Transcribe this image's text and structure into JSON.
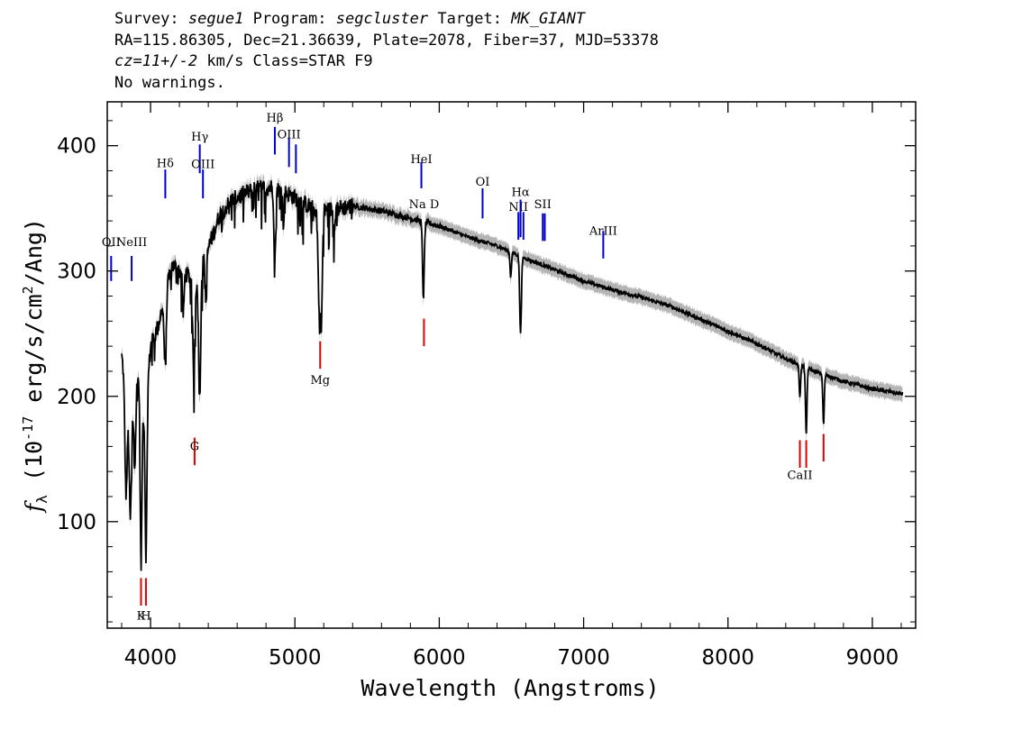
{
  "header": {
    "survey_label": "Survey:",
    "survey": "segue1",
    "program_label": "Program:",
    "program": "segcluster",
    "target_label": "Target:",
    "target": "MK_GIANT",
    "line2": "RA=115.86305, Dec=21.36639, Plate=2078, Fiber=37, MJD=53378",
    "cz": "cz=11+/-2",
    "line3_rest": " km/s Class=STAR F9",
    "line4": "No warnings."
  },
  "chart_data": {
    "type": "line",
    "xlabel": "Wavelength (Angstroms)",
    "ylabel": "f_λ (10^-17 erg/s/cm^2/Ang)",
    "xlim": [
      3700,
      9300
    ],
    "ylim": [
      15,
      435
    ],
    "xticks": [
      4000,
      5000,
      6000,
      7000,
      8000,
      9000
    ],
    "yticks": [
      100,
      200,
      300,
      400
    ],
    "colors": {
      "spectrum": "#000000",
      "error_band": "#b4b4b4",
      "emission_lines": "#0000cc",
      "absorption_lines": "#dd0000"
    },
    "continuum": [
      [
        3800,
        232
      ],
      [
        3840,
        200
      ],
      [
        3880,
        205
      ],
      [
        3920,
        215
      ],
      [
        3960,
        180
      ],
      [
        4000,
        240
      ],
      [
        4050,
        255
      ],
      [
        4100,
        280
      ],
      [
        4150,
        305
      ],
      [
        4200,
        300
      ],
      [
        4280,
        295
      ],
      [
        4360,
        305
      ],
      [
        4420,
        325
      ],
      [
        4480,
        345
      ],
      [
        4550,
        355
      ],
      [
        4650,
        362
      ],
      [
        4750,
        366
      ],
      [
        4850,
        367
      ],
      [
        4950,
        362
      ],
      [
        5050,
        355
      ],
      [
        5150,
        348
      ],
      [
        5250,
        349
      ],
      [
        5400,
        352
      ],
      [
        5600,
        348
      ],
      [
        5800,
        342
      ],
      [
        6000,
        336
      ],
      [
        6200,
        327
      ],
      [
        6400,
        320
      ],
      [
        6600,
        310
      ],
      [
        6800,
        301
      ],
      [
        7000,
        292
      ],
      [
        7200,
        285
      ],
      [
        7400,
        279
      ],
      [
        7600,
        272
      ],
      [
        7800,
        262
      ],
      [
        8000,
        252
      ],
      [
        8200,
        242
      ],
      [
        8400,
        230
      ],
      [
        8600,
        220
      ],
      [
        8800,
        212
      ],
      [
        9000,
        206
      ],
      [
        9200,
        202
      ]
    ],
    "absorption_features": [
      {
        "center": 3830,
        "depth": 85,
        "width": 8
      },
      {
        "center": 3860,
        "depth": 100,
        "width": 8
      },
      {
        "center": 3890,
        "depth": 60,
        "width": 7
      },
      {
        "center": 3934,
        "depth": 140,
        "width": 6
      },
      {
        "center": 3969,
        "depth": 120,
        "width": 6
      },
      {
        "center": 4101,
        "depth": 55,
        "width": 7
      },
      {
        "center": 4227,
        "depth": 35,
        "width": 5
      },
      {
        "center": 4300,
        "depth": 80,
        "width": 8
      },
      {
        "center": 4340,
        "depth": 105,
        "width": 7
      },
      {
        "center": 4384,
        "depth": 40,
        "width": 5
      },
      {
        "center": 4861,
        "depth": 60,
        "width": 6
      },
      {
        "center": 4920,
        "depth": 25,
        "width": 5
      },
      {
        "center": 5167,
        "depth": 70,
        "width": 7
      },
      {
        "center": 5183,
        "depth": 90,
        "width": 7
      },
      {
        "center": 5270,
        "depth": 20,
        "width": 5
      },
      {
        "center": 5890,
        "depth": 60,
        "width": 6
      },
      {
        "center": 6495,
        "depth": 20,
        "width": 5
      },
      {
        "center": 6563,
        "depth": 60,
        "width": 6
      },
      {
        "center": 8498,
        "depth": 25,
        "width": 5
      },
      {
        "center": 8542,
        "depth": 55,
        "width": 5
      },
      {
        "center": 8662,
        "depth": 40,
        "width": 5
      }
    ],
    "emission_lines": [
      {
        "label": "OII",
        "wavelength": 3727,
        "label_y": 320,
        "tick": [
          292,
          312
        ]
      },
      {
        "label": "NeIII",
        "wavelength": 3869,
        "label_y": 320,
        "tick": [
          292,
          312
        ]
      },
      {
        "label": "Hδ",
        "wavelength": 4102,
        "label_y": 383,
        "tick": [
          358,
          381
        ]
      },
      {
        "label": "Hγ",
        "wavelength": 4341,
        "label_y": 404,
        "tick": [
          378,
          401
        ]
      },
      {
        "label": "OIII",
        "wavelength": 4363,
        "label_y": 382,
        "tick": [
          358,
          381
        ]
      },
      {
        "label": "Hβ",
        "wavelength": 4861,
        "label_y": 419,
        "tick": [
          393,
          415
        ]
      },
      {
        "label": "OIII",
        "wavelength": 4959,
        "label_y": 406,
        "tick": [
          383,
          406
        ]
      },
      {
        "label": "OIII",
        "wavelength": 5007,
        "label_y": 406,
        "tick": [
          378,
          401
        ]
      },
      {
        "label": "HeI",
        "wavelength": 5876,
        "label_y": 386,
        "tick": [
          366,
          387
        ]
      },
      {
        "label": "OI",
        "wavelength": 6300,
        "label_y": 368,
        "tick": [
          342,
          366
        ]
      },
      {
        "label": "NII",
        "wavelength": 6548,
        "label_y": 348,
        "tick": [
          325,
          347
        ]
      },
      {
        "label": "Hα",
        "wavelength": 6563,
        "label_y": 360,
        "tick": [
          327,
          357
        ]
      },
      {
        "label": "NII",
        "wavelength": 6583,
        "label_y": 348,
        "tick": [
          325,
          347
        ]
      },
      {
        "label": "SII",
        "wavelength": 6717,
        "label_y": 350,
        "tick": [
          324,
          346
        ]
      },
      {
        "label": "SII",
        "wavelength": 6731,
        "label_y": 350,
        "tick": [
          324,
          346
        ]
      },
      {
        "label": "ArIII",
        "wavelength": 7136,
        "label_y": 329,
        "tick": [
          310,
          332
        ]
      }
    ],
    "absorption_lines": [
      {
        "label": "K",
        "wavelength": 3934,
        "label_y": 22,
        "tick": [
          33,
          55
        ]
      },
      {
        "label": "H",
        "wavelength": 3968,
        "label_y": 22,
        "tick": [
          33,
          55
        ]
      },
      {
        "label": "G",
        "wavelength": 4305,
        "label_y": 157,
        "tick": [
          145,
          167
        ]
      },
      {
        "label": "Mg",
        "wavelength": 5175,
        "label_y": 210,
        "tick": [
          222,
          244
        ]
      },
      {
        "label": "Na D",
        "wavelength": 5894,
        "label_y": 350,
        "tick": [
          240,
          262
        ]
      },
      {
        "label": "CaII",
        "wavelength": 8498,
        "label_y": 134,
        "tick": [
          143,
          165
        ]
      },
      {
        "label": "CaII",
        "wavelength": 8542,
        "label_y": 134,
        "tick": [
          143,
          165
        ]
      },
      {
        "label": "CaII",
        "wavelength": 8662,
        "label_y": 134,
        "tick": [
          148,
          170
        ]
      }
    ]
  }
}
